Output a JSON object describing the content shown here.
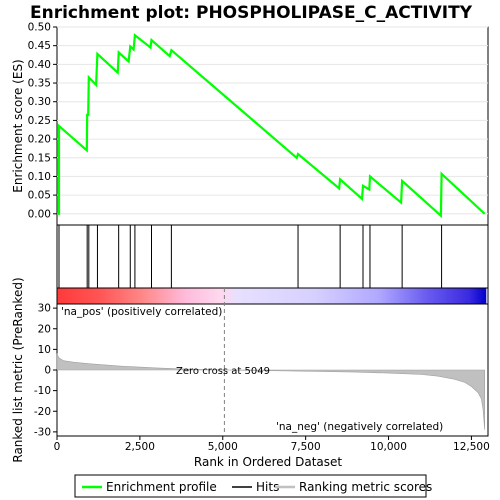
{
  "chart_data": {
    "type": "line",
    "title": "Enrichment plot: PHOSPHOLIPASE_C_ACTIVITY",
    "top_panel": {
      "ylabel": "Enrichment score (ES)",
      "ylim": [
        -0.03,
        0.5
      ],
      "yticks": [
        "0.00",
        "0.05",
        "0.10",
        "0.15",
        "0.20",
        "0.25",
        "0.30",
        "0.35",
        "0.40",
        "0.45",
        "0.50"
      ],
      "series": [
        {
          "name": "Enrichment profile",
          "color": "#00ff00",
          "x": [
            0,
            60,
            60,
            900,
            910,
            940,
            960,
            1180,
            1220,
            1830,
            1860,
            2160,
            2210,
            2310,
            2350,
            2820,
            2850,
            3400,
            3450,
            7230,
            7270,
            8510,
            8540,
            9200,
            9230,
            9420,
            9440,
            10380,
            10410,
            11580,
            11600,
            12900
          ],
          "y": [
            0.0,
            0.0,
            0.235,
            0.17,
            0.265,
            0.265,
            0.365,
            0.345,
            0.428,
            0.378,
            0.432,
            0.408,
            0.448,
            0.44,
            0.478,
            0.445,
            0.465,
            0.422,
            0.438,
            0.15,
            0.16,
            0.068,
            0.092,
            0.04,
            0.075,
            0.065,
            0.1,
            0.03,
            0.088,
            -0.005,
            0.107,
            0.0
          ]
        }
      ]
    },
    "hits": [
      60,
      910,
      960,
      1220,
      1860,
      2210,
      2350,
      2850,
      3450,
      7270,
      8540,
      9230,
      9440,
      10410,
      11600
    ],
    "bottom_panel": {
      "xlabel": "Rank in Ordered Dataset",
      "ylabel": "Ranked list metric (PreRanked)",
      "xlim": [
        0,
        13000
      ],
      "ylim": [
        -32,
        32
      ],
      "xticks": [
        "0",
        "2,500",
        "5,000",
        "7,500",
        "10,000",
        "12,500"
      ],
      "yticks": [
        "30",
        "20",
        "10",
        "0",
        "-10",
        "-20",
        "-30"
      ],
      "zero_cross_label": "Zero cross at 5049",
      "zero_cross": 5049,
      "pos_label": "'na_pos' (positively correlated)",
      "neg_label": "'na_neg' (negatively correlated)",
      "metric_x": [
        0,
        50,
        200,
        500,
        1000,
        2000,
        3000,
        4000,
        5049,
        7000,
        9000,
        10000,
        11000,
        11500,
        12000,
        12300,
        12500,
        12700,
        12800,
        12850,
        12900
      ],
      "metric_y": [
        8,
        6,
        4.5,
        3.8,
        3.0,
        1.8,
        1.0,
        0.4,
        0,
        -0.5,
        -1.0,
        -1.5,
        -2.2,
        -3.0,
        -4.5,
        -6,
        -8,
        -11,
        -14,
        -19,
        -29
      ],
      "pos_color": "#ff0000",
      "neg_color": "#0000ff"
    },
    "legend": [
      {
        "label": "Enrichment profile",
        "color": "#00ff00"
      },
      {
        "label": "Hits",
        "color": "#000000"
      },
      {
        "label": "Ranking metric scores",
        "color": "#c0c0c0"
      }
    ],
    "max_rank": 12950
  }
}
